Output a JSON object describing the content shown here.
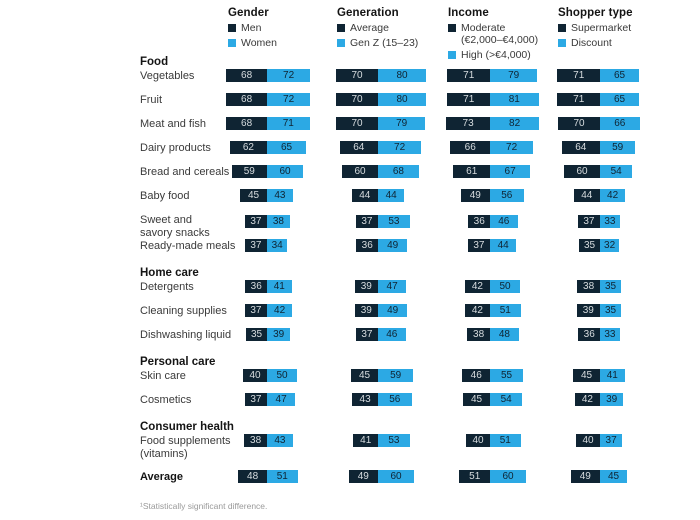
{
  "chart_data": {
    "type": "bar",
    "variant": "paired-horizontal-bars",
    "colors": {
      "series1": "#0f2433",
      "series2": "#2ca9e4",
      "value_on_dark": "#d7dcdf",
      "value_on_light": "#0f2433"
    },
    "groups": [
      {
        "title": "Gender",
        "series": [
          "Men",
          "Women"
        ]
      },
      {
        "title": "Generation",
        "series": [
          "Average",
          "Gen Z (15–23)"
        ]
      },
      {
        "title": "Income",
        "series": [
          "Moderate\n(€2,000–€4,000)",
          "High (>€4,000)"
        ]
      },
      {
        "title": "Shopper type",
        "series": [
          "Supermarket",
          "Discount"
        ]
      }
    ],
    "sections": [
      {
        "name": "Food",
        "rows": [
          {
            "label": "Vegetables",
            "values": [
              [
                68,
                72
              ],
              [
                70,
                80
              ],
              [
                71,
                79
              ],
              [
                71,
                65
              ]
            ]
          },
          {
            "label": "Fruit",
            "values": [
              [
                68,
                72
              ],
              [
                70,
                80
              ],
              [
                71,
                81
              ],
              [
                71,
                65
              ]
            ]
          },
          {
            "label": "Meat and fish",
            "values": [
              [
                68,
                71
              ],
              [
                70,
                79
              ],
              [
                73,
                82
              ],
              [
                70,
                66
              ]
            ]
          },
          {
            "label": "Dairy products",
            "values": [
              [
                62,
                65
              ],
              [
                64,
                72
              ],
              [
                66,
                72
              ],
              [
                64,
                59
              ]
            ]
          },
          {
            "label": "Bread and cereals",
            "values": [
              [
                59,
                60
              ],
              [
                60,
                68
              ],
              [
                61,
                67
              ],
              [
                60,
                54
              ]
            ]
          },
          {
            "label": "Baby food",
            "values": [
              [
                45,
                43
              ],
              [
                44,
                44
              ],
              [
                49,
                56
              ],
              [
                44,
                42
              ]
            ]
          },
          {
            "label": "Sweet and\nsavory snacks",
            "values": [
              [
                37,
                38
              ],
              [
                37,
                53
              ],
              [
                36,
                46
              ],
              [
                37,
                33
              ]
            ]
          },
          {
            "label": "Ready-made meals",
            "values": [
              [
                37,
                34
              ],
              [
                36,
                49
              ],
              [
                37,
                44
              ],
              [
                35,
                32
              ]
            ]
          }
        ]
      },
      {
        "name": "Home care",
        "rows": [
          {
            "label": "Detergents",
            "values": [
              [
                36,
                41
              ],
              [
                39,
                47
              ],
              [
                42,
                50
              ],
              [
                38,
                35
              ]
            ]
          },
          {
            "label": "Cleaning supplies",
            "values": [
              [
                37,
                42
              ],
              [
                39,
                49
              ],
              [
                42,
                51
              ],
              [
                39,
                35
              ]
            ]
          },
          {
            "label": "Dishwashing liquid",
            "values": [
              [
                35,
                39
              ],
              [
                37,
                46
              ],
              [
                38,
                48
              ],
              [
                36,
                33
              ]
            ]
          }
        ]
      },
      {
        "name": "Personal care",
        "rows": [
          {
            "label": "Skin care",
            "values": [
              [
                40,
                50
              ],
              [
                45,
                59
              ],
              [
                46,
                55
              ],
              [
                45,
                41
              ]
            ]
          },
          {
            "label": "Cosmetics",
            "values": [
              [
                37,
                47
              ],
              [
                43,
                56
              ],
              [
                45,
                54
              ],
              [
                42,
                39
              ]
            ]
          }
        ]
      },
      {
        "name": "Consumer health",
        "rows": [
          {
            "label": "Food supplements\n(vitamins)",
            "values": [
              [
                38,
                43
              ],
              [
                41,
                53
              ],
              [
                40,
                51
              ],
              [
                40,
                37
              ]
            ]
          }
        ]
      }
    ],
    "average_row": {
      "label": "Average",
      "values": [
        [
          48,
          51
        ],
        [
          49,
          60
        ],
        [
          51,
          60
        ],
        [
          49,
          45
        ]
      ]
    },
    "footnote": "¹Statistically significant difference."
  }
}
